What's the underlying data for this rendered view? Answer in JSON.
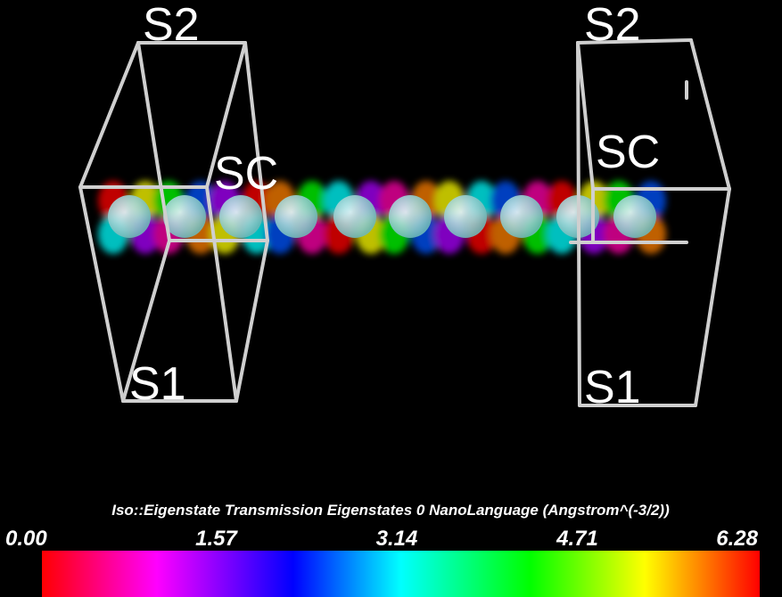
{
  "scene": {
    "labels": [
      "S2",
      "S2",
      "SC",
      "SC",
      "S1",
      "S1"
    ]
  },
  "colorbar": {
    "title": "Iso::Eigenstate Transmission Eigenstates 0 NanoLanguage (Angstrom^(-3/2))",
    "lim": [
      0,
      6.28
    ],
    "ticks": [
      {
        "value": 0,
        "label": "0.00"
      },
      {
        "value": 1.57,
        "label": "1.57"
      },
      {
        "value": 3.14,
        "label": "3.14"
      },
      {
        "value": 4.71,
        "label": "4.71"
      },
      {
        "value": 6.28,
        "label": "6.28"
      }
    ]
  }
}
